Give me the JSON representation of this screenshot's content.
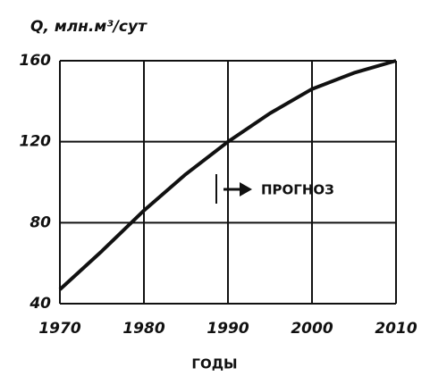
{
  "chart_data": {
    "type": "line",
    "ylabel": "Q, млн.м³/сут",
    "xlabel": "ГОДЫ",
    "x": [
      1970,
      1975,
      1980,
      1985,
      1990,
      1995,
      2000,
      2005,
      2010
    ],
    "values": [
      47,
      66,
      86,
      104,
      120,
      134,
      146,
      154,
      160
    ],
    "color": "#111111",
    "xlim": [
      1970,
      2010
    ],
    "xticks": [
      1970,
      1980,
      1990,
      2000,
      2010
    ],
    "ylim": [
      40,
      160
    ],
    "yticks": [
      40,
      80,
      120,
      160
    ],
    "grid": true,
    "annotation": "ПРОГНОЗ"
  }
}
